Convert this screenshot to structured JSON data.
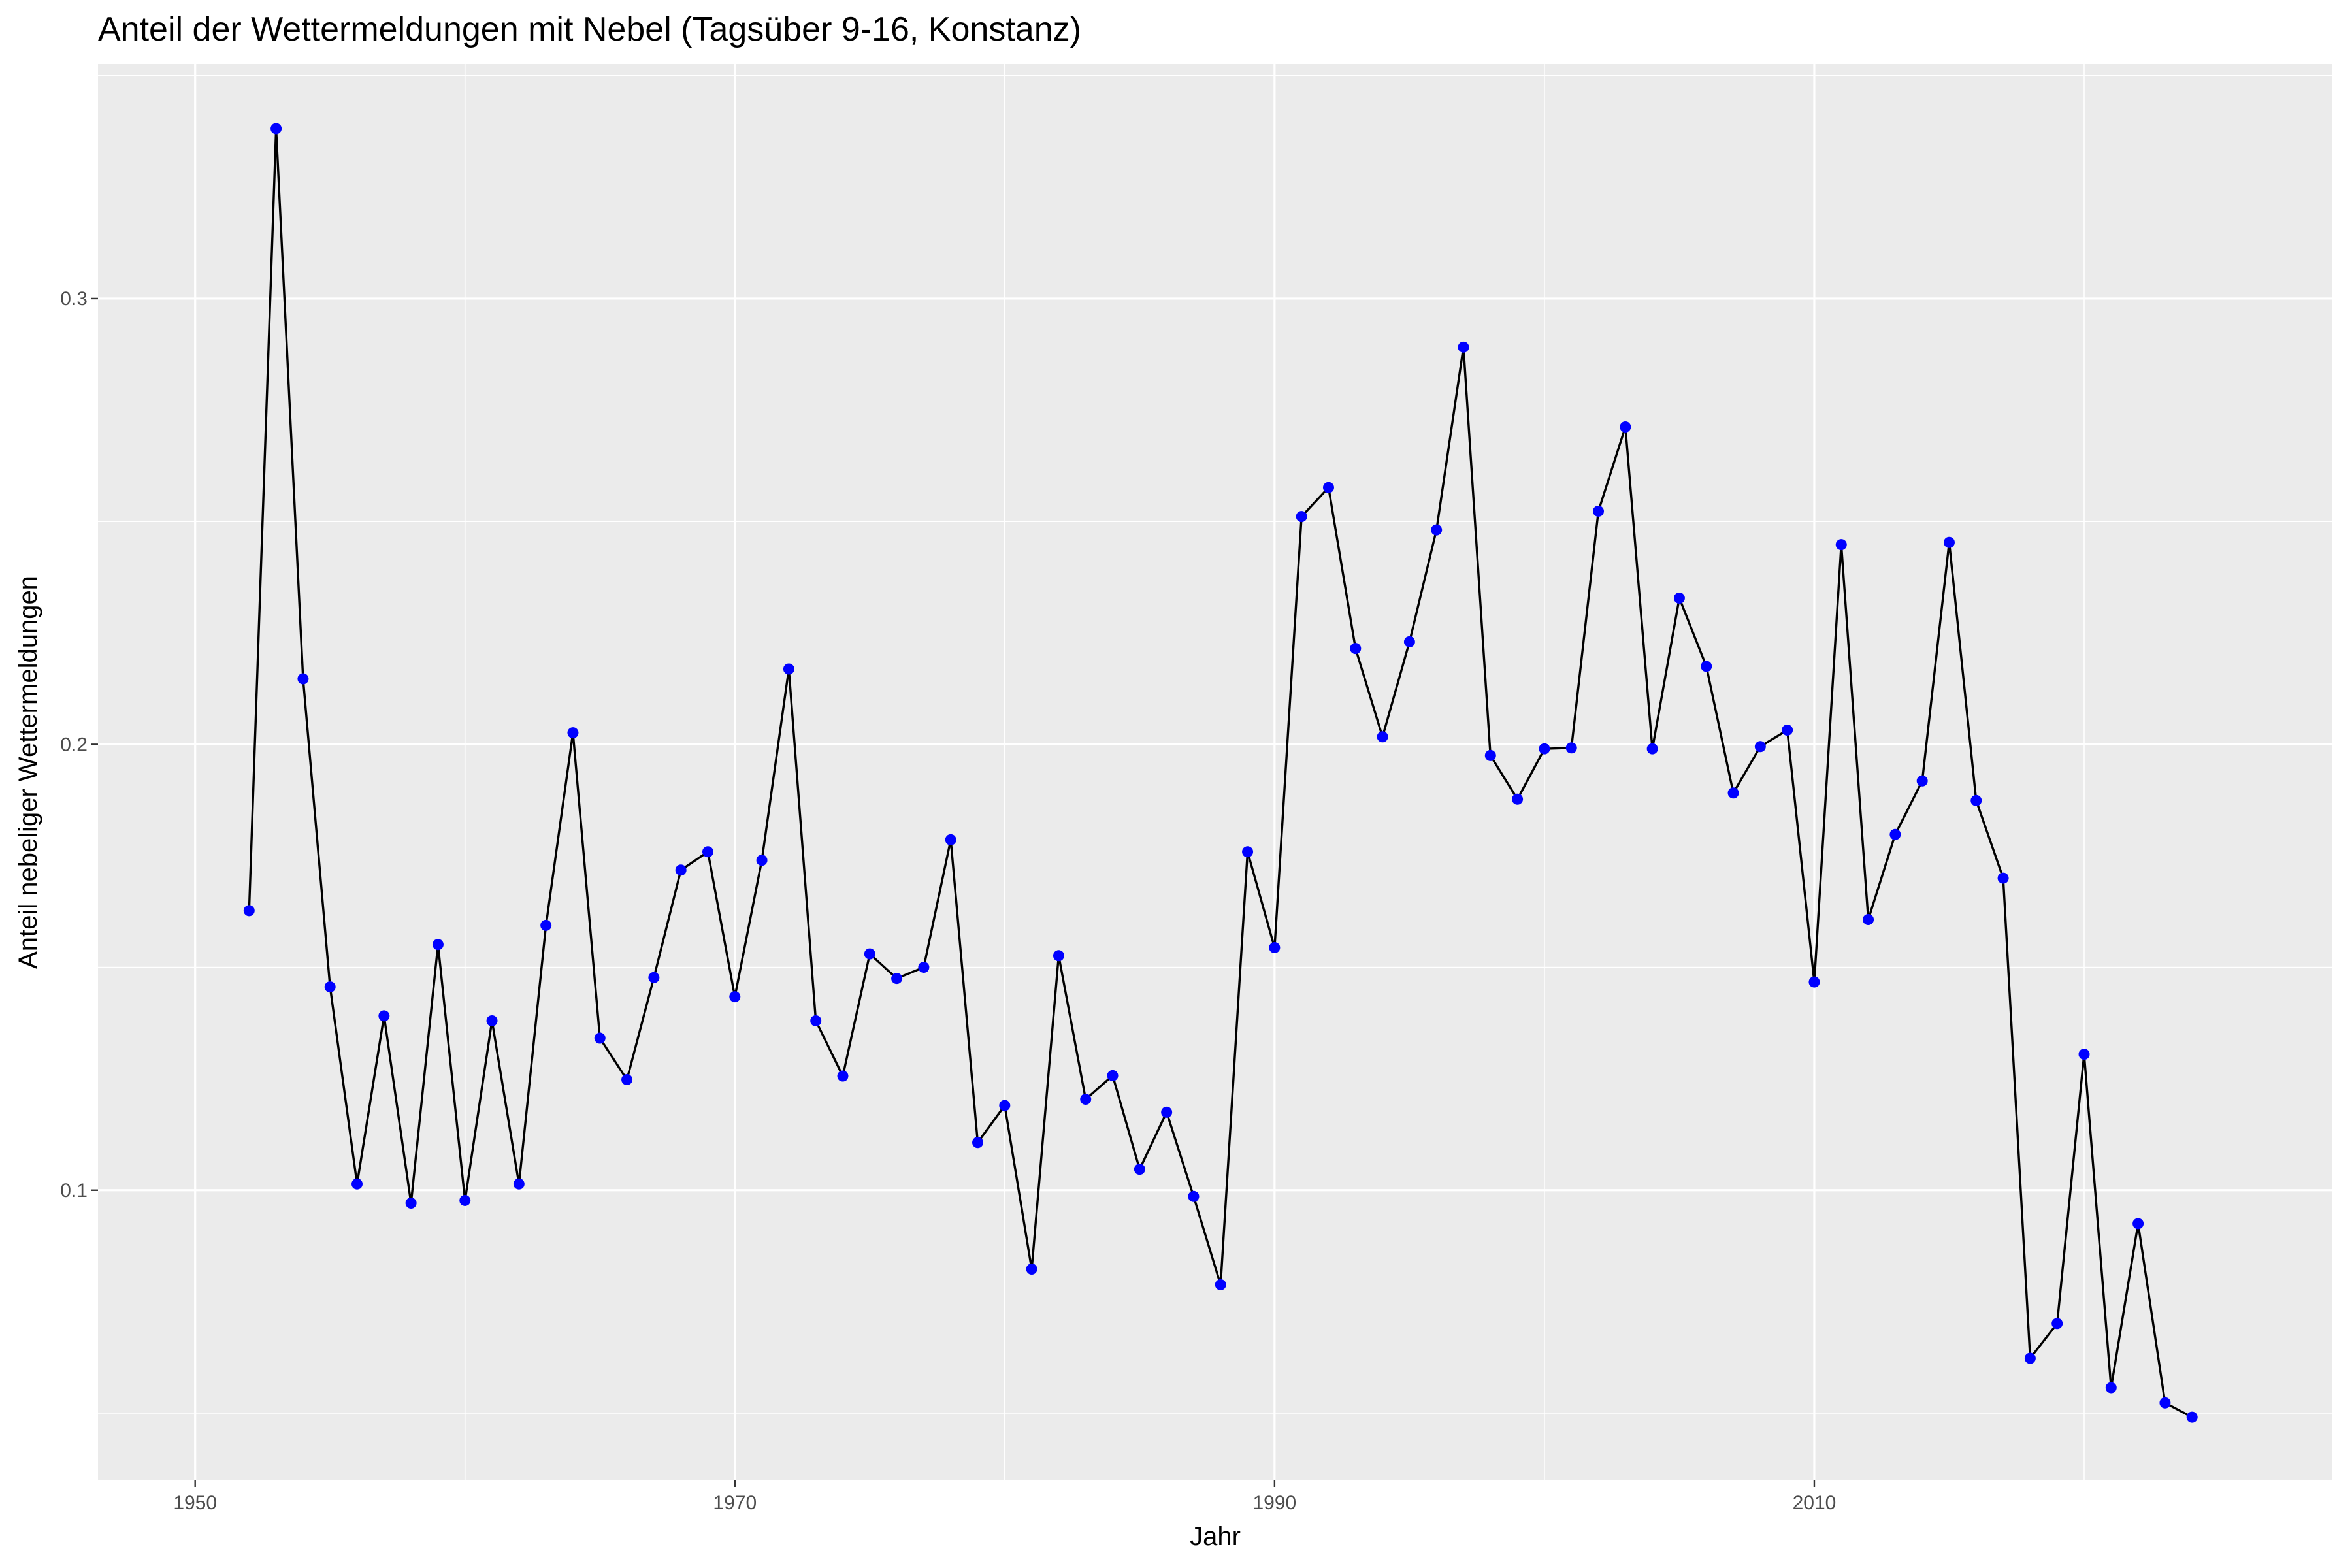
{
  "chart_data": {
    "type": "line",
    "title": "Anteil der Wettermeldungen mit Nebel (Tagsüber 9-16, Konstanz)",
    "xlabel": "Jahr",
    "ylabel": "Anteil nebeliger Wettermeldungen",
    "xlim": [
      1946.4,
      2029.2
    ],
    "ylim": [
      0.0349,
      0.3526
    ],
    "x_ticks": [
      1950,
      1970,
      1990,
      2010
    ],
    "x_tick_labels": [
      "1950",
      "1970",
      "1990",
      "2010"
    ],
    "y_ticks": [
      0.1,
      0.2,
      0.3
    ],
    "y_tick_labels": [
      "0.1",
      "0.2",
      "0.3"
    ],
    "grid": true,
    "line_color": "#000000",
    "point_color": "#0000ff",
    "panel_background": "#ebebeb",
    "series": [
      {
        "x": [
          1952,
          1953,
          1954,
          1955,
          1956,
          1957,
          1958,
          1959,
          1960,
          1961,
          1962,
          1963,
          1964,
          1965,
          1966,
          1967,
          1968,
          1969,
          1970,
          1971,
          1972,
          1973,
          1974,
          1975,
          1976,
          1977,
          1978,
          1979,
          1980,
          1981,
          1982,
          1983,
          1984,
          1985,
          1986,
          1987,
          1988,
          1989,
          1990,
          1991,
          1992,
          1993,
          1994,
          1995,
          1996,
          1997,
          1998,
          1999,
          2000,
          2001,
          2002,
          2003,
          2004,
          2005,
          2006,
          2007,
          2008,
          2009,
          2010,
          2011,
          2012,
          2013,
          2014,
          2015,
          2016,
          2017,
          2018,
          2019,
          2020,
          2021,
          2022,
          2023,
          2024
        ],
        "values": [
          0.1627,
          0.3381,
          0.2147,
          0.1456,
          0.1014,
          0.1391,
          0.0971,
          0.1551,
          0.0977,
          0.138,
          0.1014,
          0.1594,
          0.2026,
          0.1341,
          0.1248,
          0.1477,
          0.1718,
          0.1759,
          0.1434,
          0.174,
          0.2169,
          0.138,
          0.1256,
          0.153,
          0.1475,
          0.15,
          0.1786,
          0.1107,
          0.119,
          0.0823,
          0.1526,
          0.1204,
          0.1257,
          0.1047,
          0.1175,
          0.0986,
          0.0788,
          0.1759,
          0.1544,
          0.2511,
          0.2576,
          0.2215,
          0.2017,
          0.223,
          0.2481,
          0.2891,
          0.1975,
          0.1877,
          0.199,
          0.1992,
          0.2523,
          0.2712,
          0.199,
          0.2328,
          0.2175,
          0.1891,
          0.1995,
          0.2032,
          0.1467,
          0.2448,
          0.1607,
          0.1798,
          0.1918,
          0.2453,
          0.1874,
          0.17,
          0.0623,
          0.0701,
          0.1305,
          0.0557,
          0.0925,
          0.0523,
          0.0491
        ]
      }
    ]
  }
}
